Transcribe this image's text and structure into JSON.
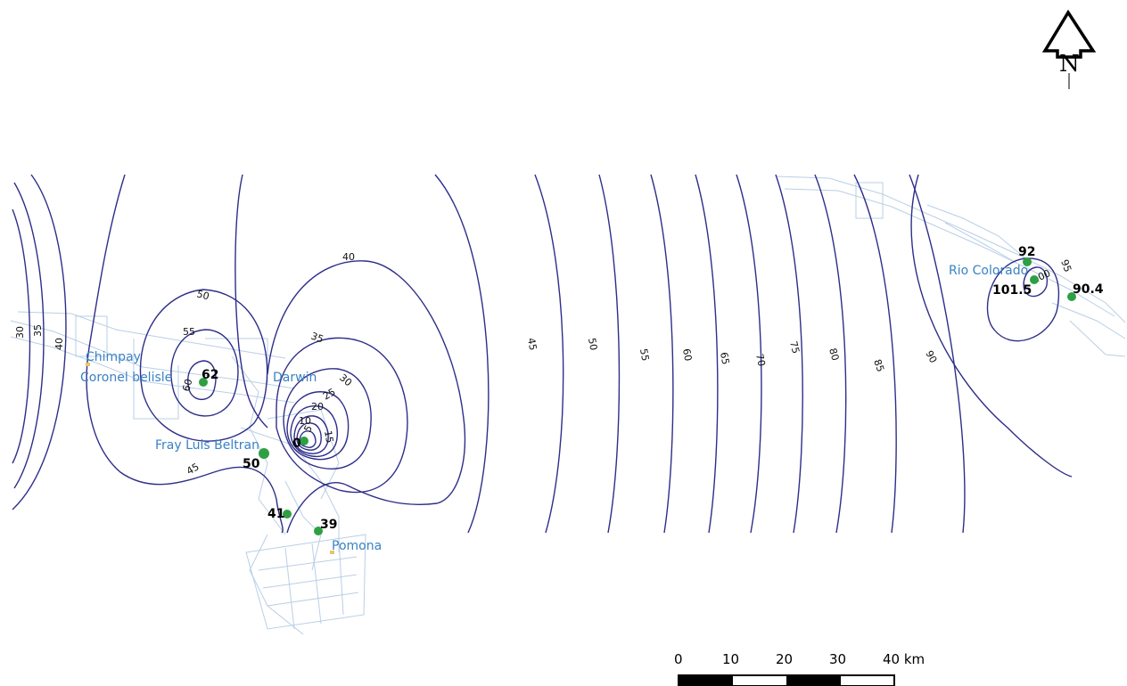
{
  "north_arrow": {
    "letter": "N"
  },
  "places": [
    {
      "id": "chimpay",
      "name": "Chimpay"
    },
    {
      "id": "coronel-belisle",
      "name": "Coronel belisle"
    },
    {
      "id": "darwin",
      "name": "Darwin"
    },
    {
      "id": "fray-luis-beltran",
      "name": "Fray Luis Beltran"
    },
    {
      "id": "pomona",
      "name": "Pomona"
    },
    {
      "id": "rio-colorado",
      "name": "Rio Colorado"
    }
  ],
  "stations": [
    {
      "id": "s62",
      "value": "62"
    },
    {
      "id": "s0",
      "value": "0"
    },
    {
      "id": "s50",
      "value": "50"
    },
    {
      "id": "s41",
      "value": "41"
    },
    {
      "id": "s39",
      "value": "39"
    },
    {
      "id": "s92",
      "value": "92"
    },
    {
      "id": "s101",
      "value": "101.5"
    },
    {
      "id": "s90",
      "value": "90.4"
    }
  ],
  "contour_labels": [
    "30",
    "35",
    "40",
    "50",
    "55",
    "60",
    "45",
    "40",
    "35",
    "30",
    "25",
    "20",
    "10",
    "5",
    "15",
    "45",
    "50",
    "55",
    "60",
    "65",
    "70",
    "75",
    "80",
    "85",
    "90",
    "95",
    "100"
  ],
  "scale_bar": {
    "ticks": [
      "0",
      "10",
      "20",
      "30",
      "40 km"
    ]
  },
  "colors": {
    "contour": "#2e2e8a",
    "station": "#2ea043",
    "place": "#3a82c4",
    "network": "#b9cfe6"
  }
}
